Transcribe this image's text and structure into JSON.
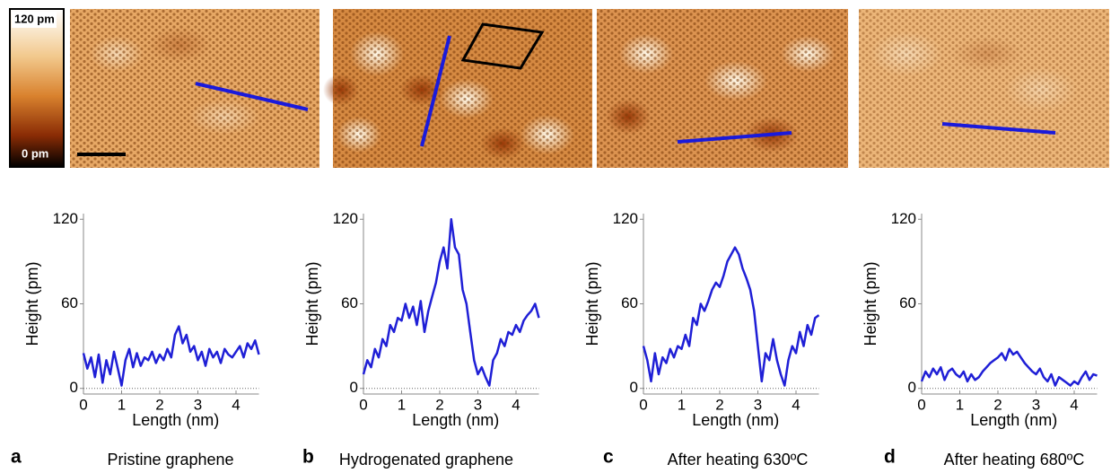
{
  "colorbar": {
    "top_label": "120 pm",
    "bottom_label": "0 pm"
  },
  "chart_data": [
    {
      "type": "line",
      "panel": "a",
      "title": "Pristine graphene",
      "x_label": "Length (nm)",
      "y_label": "Height (pm)",
      "color": "#1f1fd6",
      "x": [
        0,
        0.1,
        0.2,
        0.3,
        0.4,
        0.5,
        0.6,
        0.7,
        0.8,
        0.9,
        1,
        1.1,
        1.2,
        1.3,
        1.4,
        1.5,
        1.6,
        1.7,
        1.8,
        1.9,
        2,
        2.1,
        2.2,
        2.3,
        2.4,
        2.5,
        2.6,
        2.7,
        2.8,
        2.9,
        3,
        3.1,
        3.2,
        3.3,
        3.4,
        3.5,
        3.6,
        3.7,
        3.8,
        3.9,
        4,
        4.1,
        4.2,
        4.3,
        4.4,
        4.5,
        4.6
      ],
      "values": [
        25,
        14,
        22,
        8,
        24,
        4,
        20,
        10,
        26,
        14,
        2,
        20,
        28,
        15,
        25,
        16,
        22,
        20,
        26,
        18,
        24,
        20,
        28,
        22,
        38,
        44,
        32,
        38,
        26,
        30,
        20,
        26,
        16,
        28,
        22,
        26,
        18,
        28,
        24,
        22,
        26,
        30,
        22,
        32,
        28,
        34,
        24
      ],
      "xlim": [
        0,
        4.6
      ],
      "ylim": [
        -4,
        124
      ],
      "xticks": [
        0,
        1,
        2,
        3,
        4
      ],
      "yticks": [
        0,
        60,
        120
      ]
    },
    {
      "type": "line",
      "panel": "b",
      "title": "Hydrogenated graphene",
      "x_label": "Length (nm)",
      "y_label": "Height (pm)",
      "color": "#1f1fd6",
      "x": [
        0,
        0.1,
        0.2,
        0.3,
        0.4,
        0.5,
        0.6,
        0.7,
        0.8,
        0.9,
        1,
        1.1,
        1.2,
        1.3,
        1.4,
        1.5,
        1.6,
        1.7,
        1.8,
        1.9,
        2,
        2.1,
        2.2,
        2.3,
        2.4,
        2.5,
        2.6,
        2.7,
        2.8,
        2.9,
        3,
        3.1,
        3.2,
        3.3,
        3.4,
        3.5,
        3.6,
        3.7,
        3.8,
        3.9,
        4,
        4.1,
        4.2,
        4.3,
        4.4,
        4.5,
        4.6
      ],
      "values": [
        10,
        20,
        15,
        28,
        22,
        35,
        30,
        45,
        40,
        50,
        48,
        60,
        50,
        58,
        45,
        62,
        40,
        55,
        65,
        75,
        90,
        100,
        85,
        120,
        100,
        95,
        70,
        60,
        40,
        20,
        10,
        15,
        8,
        2,
        20,
        25,
        35,
        30,
        40,
        38,
        45,
        40,
        48,
        52,
        55,
        60,
        50
      ],
      "xlim": [
        0,
        4.6
      ],
      "ylim": [
        -4,
        124
      ],
      "xticks": [
        0,
        1,
        2,
        3,
        4
      ],
      "yticks": [
        0,
        60,
        120
      ]
    },
    {
      "type": "line",
      "panel": "c",
      "title": "After heating 630ºC",
      "x_label": "Length (nm)",
      "y_label": "Height (pm)",
      "color": "#1f1fd6",
      "x": [
        0,
        0.1,
        0.2,
        0.3,
        0.4,
        0.5,
        0.6,
        0.7,
        0.8,
        0.9,
        1,
        1.1,
        1.2,
        1.3,
        1.4,
        1.5,
        1.6,
        1.7,
        1.8,
        1.9,
        2,
        2.1,
        2.2,
        2.3,
        2.4,
        2.5,
        2.6,
        2.7,
        2.8,
        2.9,
        3,
        3.1,
        3.2,
        3.3,
        3.4,
        3.5,
        3.6,
        3.7,
        3.8,
        3.9,
        4,
        4.1,
        4.2,
        4.3,
        4.4,
        4.5,
        4.6
      ],
      "values": [
        30,
        20,
        5,
        25,
        10,
        22,
        18,
        28,
        22,
        30,
        28,
        38,
        30,
        50,
        45,
        60,
        55,
        62,
        70,
        75,
        72,
        80,
        90,
        95,
        100,
        95,
        85,
        78,
        70,
        55,
        30,
        5,
        25,
        20,
        35,
        20,
        10,
        2,
        20,
        30,
        25,
        40,
        30,
        45,
        38,
        50,
        52
      ],
      "xlim": [
        0,
        4.6
      ],
      "ylim": [
        -4,
        124
      ],
      "xticks": [
        0,
        1,
        2,
        3,
        4
      ],
      "yticks": [
        0,
        60,
        120
      ]
    },
    {
      "type": "line",
      "panel": "d",
      "title": "After heating 680ºC",
      "x_label": "Length (nm)",
      "y_label": "Height (pm)",
      "color": "#1f1fd6",
      "x": [
        0,
        0.1,
        0.2,
        0.3,
        0.4,
        0.5,
        0.6,
        0.7,
        0.8,
        0.9,
        1,
        1.1,
        1.2,
        1.3,
        1.4,
        1.5,
        1.6,
        1.7,
        1.8,
        1.9,
        2,
        2.1,
        2.2,
        2.3,
        2.4,
        2.5,
        2.6,
        2.7,
        2.8,
        2.9,
        3,
        3.1,
        3.2,
        3.3,
        3.4,
        3.5,
        3.6,
        3.7,
        3.8,
        3.9,
        4,
        4.1,
        4.2,
        4.3,
        4.4,
        4.5,
        4.6
      ],
      "values": [
        5,
        12,
        8,
        14,
        10,
        15,
        6,
        12,
        14,
        10,
        8,
        12,
        5,
        10,
        6,
        8,
        12,
        15,
        18,
        20,
        22,
        25,
        20,
        28,
        24,
        26,
        22,
        18,
        15,
        12,
        10,
        14,
        8,
        5,
        10,
        2,
        8,
        6,
        4,
        2,
        5,
        3,
        8,
        12,
        6,
        10,
        9
      ],
      "xlim": [
        0,
        4.6
      ],
      "ylim": [
        -4,
        124
      ],
      "xticks": [
        0,
        1,
        2,
        3,
        4
      ],
      "yticks": [
        0,
        60,
        120
      ]
    }
  ]
}
